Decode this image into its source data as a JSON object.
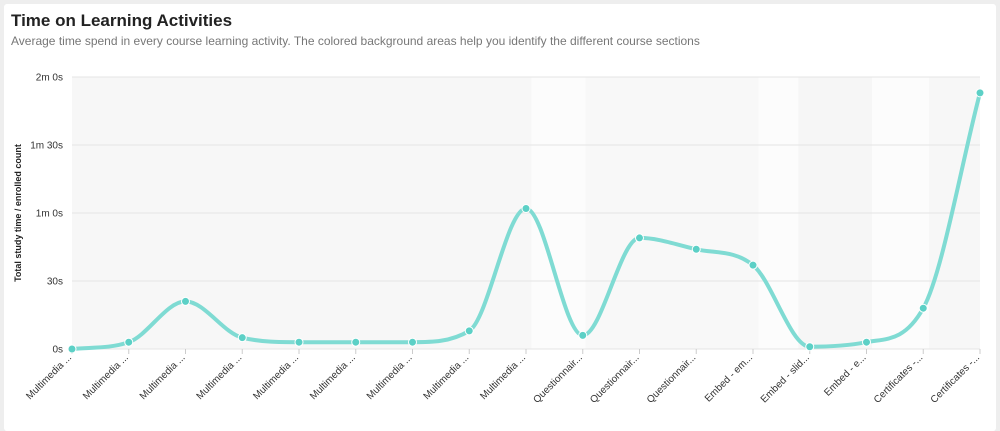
{
  "header": {
    "title": "Time on Learning Activities",
    "subtitle": "Average time spend in every course learning activity. The colored background areas help you identify the different course sections"
  },
  "chart_data": {
    "type": "line",
    "title": "Time on Learning Activities",
    "xlabel": "",
    "ylabel": "Total study time / enrolled count",
    "ylim": [
      0,
      120
    ],
    "y_ticks": [
      0,
      30,
      60,
      90,
      120
    ],
    "y_tick_labels": [
      "0s",
      "30s",
      "1m 0s",
      "1m 30s",
      "2m 0s"
    ],
    "grid": true,
    "curve": "smooth",
    "categories": [
      "Multimedia ...",
      "Multimedia ...",
      "Multimedia ...",
      "Multimedia ...",
      "Multimedia ...",
      "Multimedia ...",
      "Multimedia ...",
      "Multimedia ...",
      "Multimedia ...",
      "Questionnair...",
      "Questionnair...",
      "Questionnair...",
      "Embed - em...",
      "Embed - slid...",
      "Embed - e...",
      "Certificates -...",
      "Certificates -..."
    ],
    "series": [
      {
        "values": [
          0,
          3,
          21,
          5,
          3,
          3,
          3,
          8,
          62,
          6,
          49,
          44,
          37,
          1,
          3,
          18,
          113
        ]
      }
    ],
    "line_color": "#7fdbd3",
    "point_color": "#5cd0c6"
  }
}
